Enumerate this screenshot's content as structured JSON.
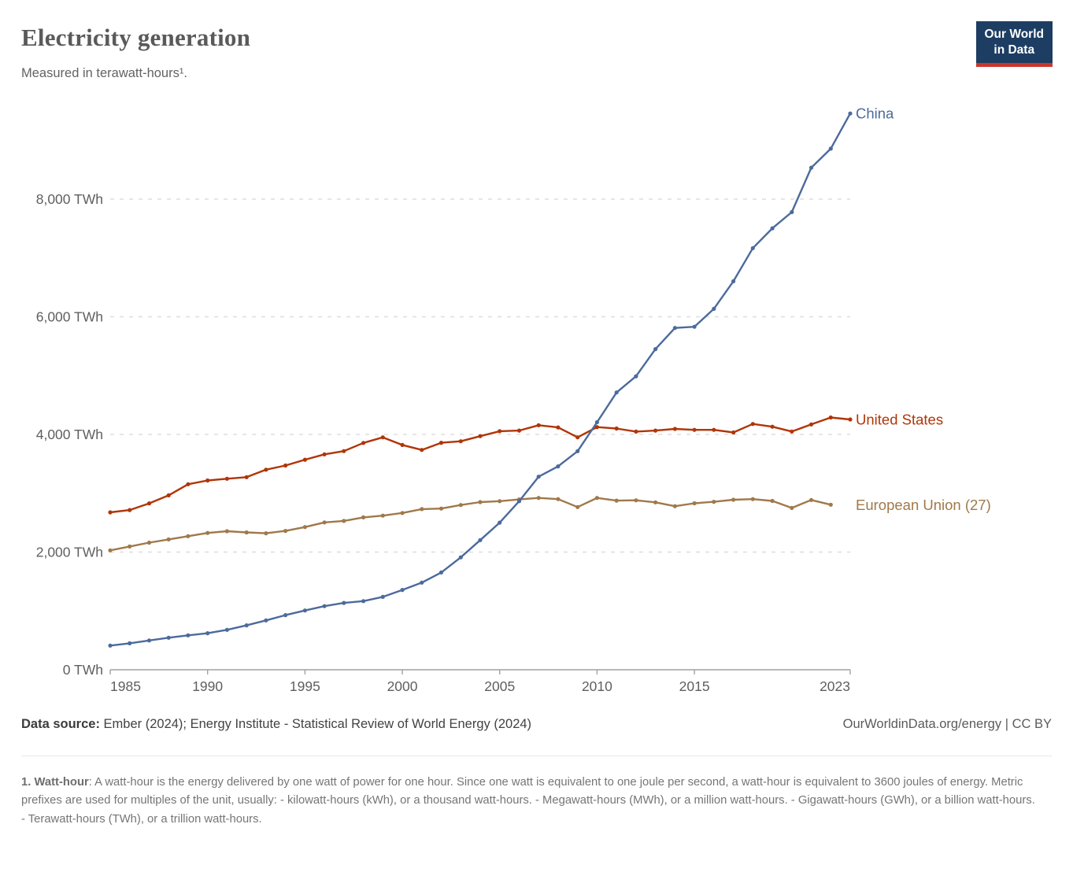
{
  "header": {
    "title": "Electricity generation",
    "subtitle": "Measured in terawatt-hours¹.",
    "logo": {
      "line1": "Our World",
      "line2": "in Data"
    }
  },
  "chart_data": {
    "type": "line",
    "title": "Electricity generation",
    "unit": "TWh",
    "grid": "horizontal-dashed",
    "legend_position": "end-of-line-labels",
    "x": [
      1985,
      1986,
      1987,
      1988,
      1989,
      1990,
      1991,
      1992,
      1993,
      1994,
      1995,
      1996,
      1997,
      1998,
      1999,
      2000,
      2001,
      2002,
      2003,
      2004,
      2005,
      2006,
      2007,
      2008,
      2009,
      2010,
      2011,
      2012,
      2013,
      2014,
      2015,
      2016,
      2017,
      2018,
      2019,
      2020,
      2021,
      2022,
      2023
    ],
    "x_ticks": [
      1985,
      1990,
      1995,
      2000,
      2005,
      2010,
      2015,
      2023
    ],
    "x_tick_labels": [
      "1985",
      "1990",
      "1995",
      "2000",
      "2005",
      "2010",
      "2015",
      "2023"
    ],
    "y_ticks": [
      0,
      2000,
      4000,
      6000,
      8000
    ],
    "y_tick_labels": [
      "0 TWh",
      "2,000 TWh",
      "4,000 TWh",
      "6,000 TWh",
      "8,000 TWh"
    ],
    "ylim": [
      0,
      9700
    ],
    "xlim": [
      1985,
      2023
    ],
    "series": [
      {
        "name": "European Union (27)",
        "color": "#a0794a",
        "values": [
          2030,
          2095,
          2160,
          2215,
          2270,
          2325,
          2355,
          2335,
          2320,
          2360,
          2425,
          2505,
          2530,
          2590,
          2620,
          2665,
          2730,
          2740,
          2800,
          2850,
          2865,
          2895,
          2920,
          2900,
          2765,
          2920,
          2875,
          2880,
          2845,
          2780,
          2830,
          2855,
          2890,
          2900,
          2870,
          2750,
          2885,
          2805,
          null
        ]
      },
      {
        "name": "United States",
        "color": "#b13507",
        "values": [
          2676,
          2714,
          2828,
          2964,
          3153,
          3218,
          3247,
          3274,
          3401,
          3472,
          3571,
          3662,
          3717,
          3855,
          3950,
          3821,
          3737,
          3858,
          3883,
          3971,
          4055,
          4065,
          4157,
          4119,
          3950,
          4125,
          4100,
          4048,
          4066,
          4094,
          4078,
          4077,
          4034,
          4178,
          4131,
          4050,
          4170,
          4287,
          4254
        ]
      },
      {
        "name": "China",
        "color": "#4c6a9c",
        "values": [
          411,
          450,
          497,
          545,
          585,
          621,
          678,
          754,
          839,
          928,
          1007,
          1081,
          1136,
          1166,
          1239,
          1356,
          1481,
          1654,
          1911,
          2203,
          2500,
          2866,
          3282,
          3457,
          3715,
          4207,
          4713,
          4988,
          5450,
          5810,
          5830,
          6135,
          6604,
          7166,
          7504,
          7779,
          8534,
          8858,
          9456
        ]
      }
    ]
  },
  "footer": {
    "source_label": "Data source:",
    "source_text": "Ember (2024); Energy Institute - Statistical Review of World Energy (2024)",
    "rights": "OurWorldinData.org/energy | CC BY"
  },
  "footnote": {
    "term": "1. Watt-hour",
    "text": ": A watt-hour is the energy delivered by one watt of power for one hour. Since one watt is equivalent to one joule per second, a watt-hour is equivalent to 3600 joules of energy. Metric prefixes are used for multiples of the unit, usually: - kilowatt-hours (kWh), or a thousand watt-hours. - Megawatt-hours (MWh), or a million watt-hours. - Gigawatt-hours (GWh), or a billion watt-hours. - Terawatt-hours (TWh), or a trillion watt-hours."
  },
  "style": {
    "axis_color": "#a1a1a1",
    "grid_color": "#dedede",
    "tick_label_color": "#5f5f5f"
  }
}
